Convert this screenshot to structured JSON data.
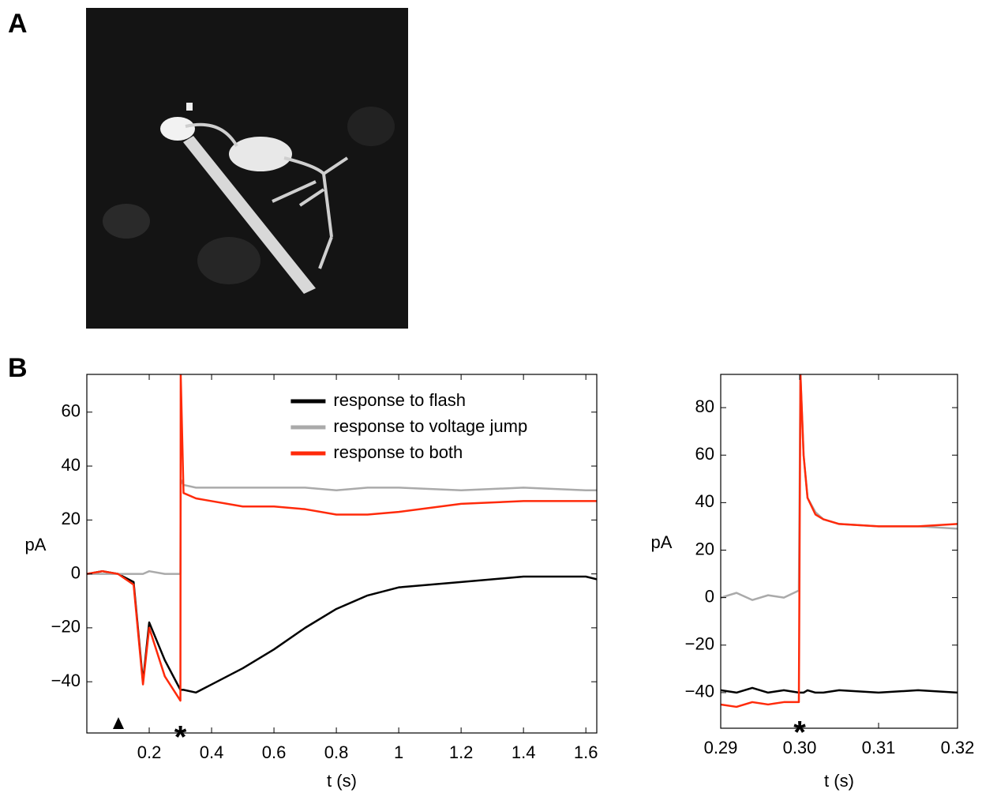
{
  "panel_labels": {
    "a": "A",
    "b": "B"
  },
  "chart_data": [
    {
      "type": "line",
      "xlabel": "t (s)",
      "ylabel": "pA",
      "xlim": [
        0,
        1.635
      ],
      "ylim": [
        -59,
        74
      ],
      "xticks": [
        0.2,
        0.4,
        0.6,
        0.8,
        1,
        1.2,
        1.4,
        1.6
      ],
      "yticks": [
        {
          "value": -40,
          "label": "−40"
        },
        {
          "value": -20,
          "label": "−20"
        },
        0,
        20,
        40,
        60
      ],
      "grid": false,
      "legend": "top",
      "x": [
        0,
        0.05,
        0.1,
        0.15,
        0.18,
        0.2,
        0.25,
        0.3,
        0.301,
        0.31,
        0.35,
        0.4,
        0.5,
        0.6,
        0.7,
        0.8,
        0.9,
        1.0,
        1.2,
        1.4,
        1.6,
        1.635
      ],
      "series": [
        {
          "name": "response to flash",
          "color": "#000000",
          "values": [
            0,
            1,
            0,
            -3,
            -40,
            -18,
            -32,
            -43,
            -43,
            -43,
            -44,
            -41,
            -35,
            -28,
            -20,
            -13,
            -8,
            -5,
            -3,
            -1,
            -1,
            -2
          ]
        },
        {
          "name": "response to voltage jump",
          "color": "#aaaaaa",
          "values": [
            0,
            0,
            0,
            0,
            0,
            1,
            0,
            0,
            35,
            33,
            32,
            32,
            32,
            32,
            32,
            31,
            32,
            32,
            31,
            32,
            31,
            31
          ]
        },
        {
          "name": "response to both",
          "color": "#ff2a0a",
          "values": [
            0,
            1,
            0,
            -4,
            -41,
            -20,
            -38,
            -47,
            74,
            30,
            28,
            27,
            25,
            25,
            24,
            22,
            22,
            23,
            26,
            27,
            27,
            27
          ]
        }
      ],
      "annotations": [
        {
          "text": "*",
          "x": 0.3
        }
      ]
    },
    {
      "type": "line",
      "xlabel": "t (s)",
      "ylabel": "pA",
      "xlim": [
        0.29,
        0.32
      ],
      "ylim": [
        -55,
        94
      ],
      "xticks": [
        0.29,
        {
          "value": 0.3,
          "label": "0.30"
        },
        0.31,
        0.32
      ],
      "yticks": [
        {
          "value": -40,
          "label": "−40"
        },
        {
          "value": -20,
          "label": "−20"
        },
        0,
        20,
        40,
        60,
        80
      ],
      "grid": false,
      "x": [
        0.29,
        0.292,
        0.294,
        0.296,
        0.298,
        0.2999,
        0.3001,
        0.3005,
        0.301,
        0.302,
        0.303,
        0.305,
        0.31,
        0.315,
        0.32
      ],
      "series": [
        {
          "name": "response to flash",
          "color": "#000000",
          "values": [
            -39,
            -40,
            -38,
            -40,
            -39,
            -40,
            -40,
            -40,
            -39,
            -40,
            -40,
            -39,
            -40,
            -39,
            -40
          ]
        },
        {
          "name": "response to voltage jump",
          "color": "#aaaaaa",
          "values": [
            0,
            2,
            -1,
            1,
            0,
            3,
            94,
            60,
            42,
            36,
            33,
            31,
            30,
            30,
            29
          ]
        },
        {
          "name": "response to both",
          "color": "#ff2a0a",
          "values": [
            -45,
            -46,
            -44,
            -45,
            -44,
            -44,
            94,
            60,
            42,
            35,
            33,
            31,
            30,
            30,
            31
          ]
        }
      ],
      "annotations": [
        {
          "text": "*",
          "x": 0.3
        }
      ]
    }
  ]
}
